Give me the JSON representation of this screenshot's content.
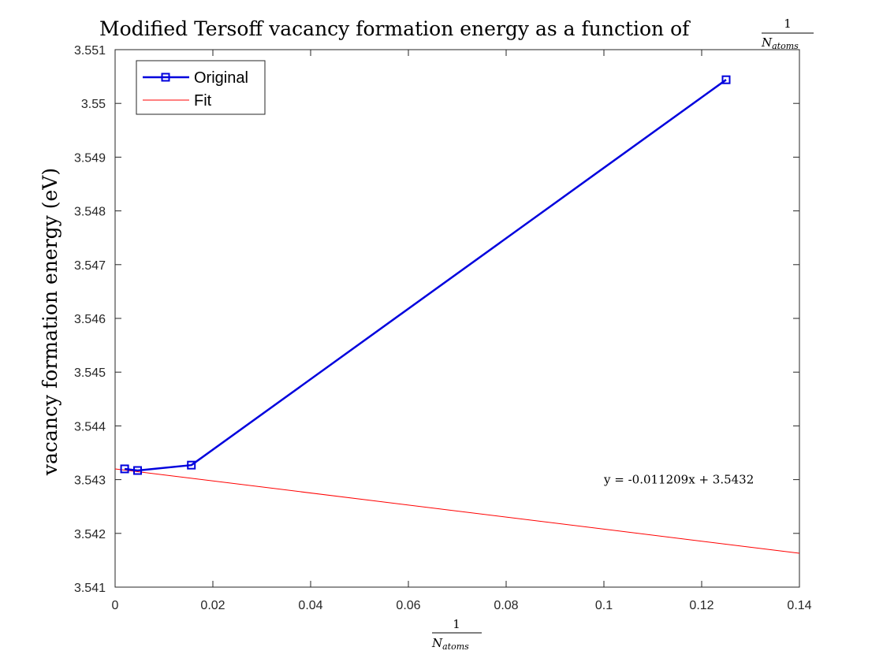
{
  "chart_data": {
    "type": "line",
    "title": "Modified Tersoff vacancy formation energy as a function of",
    "title_fraction": {
      "numerator": "1",
      "denominator_base": "N",
      "denominator_sub": "atoms"
    },
    "xlabel_fraction": {
      "numerator": "1",
      "denominator_base": "N",
      "denominator_sub": "atoms"
    },
    "ylabel": "vacancy formation energy (eV)",
    "xlim": [
      0,
      0.14
    ],
    "ylim": [
      3.541,
      3.551
    ],
    "x_ticks": [
      0,
      0.02,
      0.04,
      0.06,
      0.08,
      0.1,
      0.12,
      0.14
    ],
    "x_tick_labels": [
      "0",
      "0.02",
      "0.04",
      "0.06",
      "0.08",
      "0.1",
      "0.12",
      "0.14"
    ],
    "y_ticks": [
      3.541,
      3.542,
      3.543,
      3.544,
      3.545,
      3.546,
      3.547,
      3.548,
      3.549,
      3.55,
      3.551
    ],
    "y_tick_labels": [
      "3.541",
      "3.542",
      "3.543",
      "3.544",
      "3.545",
      "3.546",
      "3.547",
      "3.548",
      "3.549",
      "3.55",
      "3.551"
    ],
    "grid": false,
    "legend_position": "top-left",
    "series": [
      {
        "name": "Original",
        "color": "#0000dd",
        "marker": "square",
        "x": [
          0.00195,
          0.0046,
          0.0156,
          0.125
        ],
        "y": [
          3.5432,
          3.54317,
          3.54327,
          3.55044
        ]
      },
      {
        "name": "Fit",
        "color": "#ff0000",
        "marker": "none",
        "slope": -0.011209,
        "intercept": 3.5432,
        "x": [
          0,
          0.14
        ]
      }
    ],
    "annotation": {
      "text": "y = -0.011209x + 3.5432",
      "x": 0.1,
      "y": 3.543
    }
  }
}
